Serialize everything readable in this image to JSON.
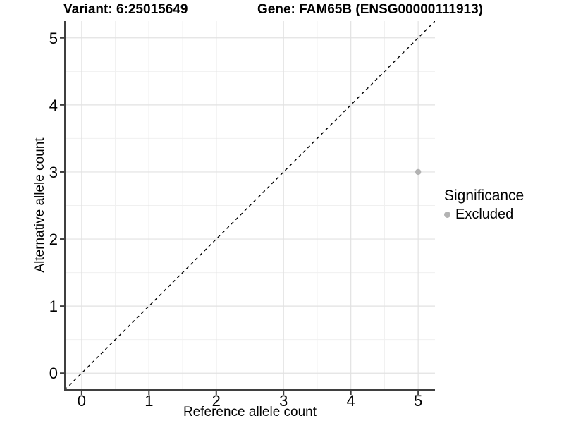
{
  "titles": {
    "variant": "Variant: 6:25015649",
    "gene": "Gene: FAM65B (ENSG00000111913)"
  },
  "chart_data": {
    "type": "scatter",
    "xlabel": "Reference allele count",
    "ylabel": "Alternative allele count",
    "xlim": [
      0,
      5
    ],
    "ylim": [
      0,
      5
    ],
    "xticks": [
      0,
      1,
      2,
      3,
      4,
      5
    ],
    "yticks": [
      0,
      1,
      2,
      3,
      4,
      5
    ],
    "expand_mult": 0.05,
    "grid": {
      "major": true,
      "minor": true
    },
    "points": [
      {
        "x": 5,
        "y": 3,
        "significance": "Excluded"
      }
    ],
    "abline": {
      "slope": 1,
      "intercept": 0,
      "linetype": "dashed",
      "color": "#000000"
    },
    "legend": {
      "title": "Significance",
      "position": "right",
      "items": [
        {
          "label": "Excluded",
          "color": "#b3b3b3"
        }
      ]
    },
    "colors": {
      "point": "#b3b3b3",
      "grid_major": "#e2e2e2",
      "grid_minor": "#f0f0f0",
      "axis_line": "#3f3f3f",
      "tick": "#3f3f3f",
      "text": "#000000",
      "background": "#ffffff"
    }
  }
}
